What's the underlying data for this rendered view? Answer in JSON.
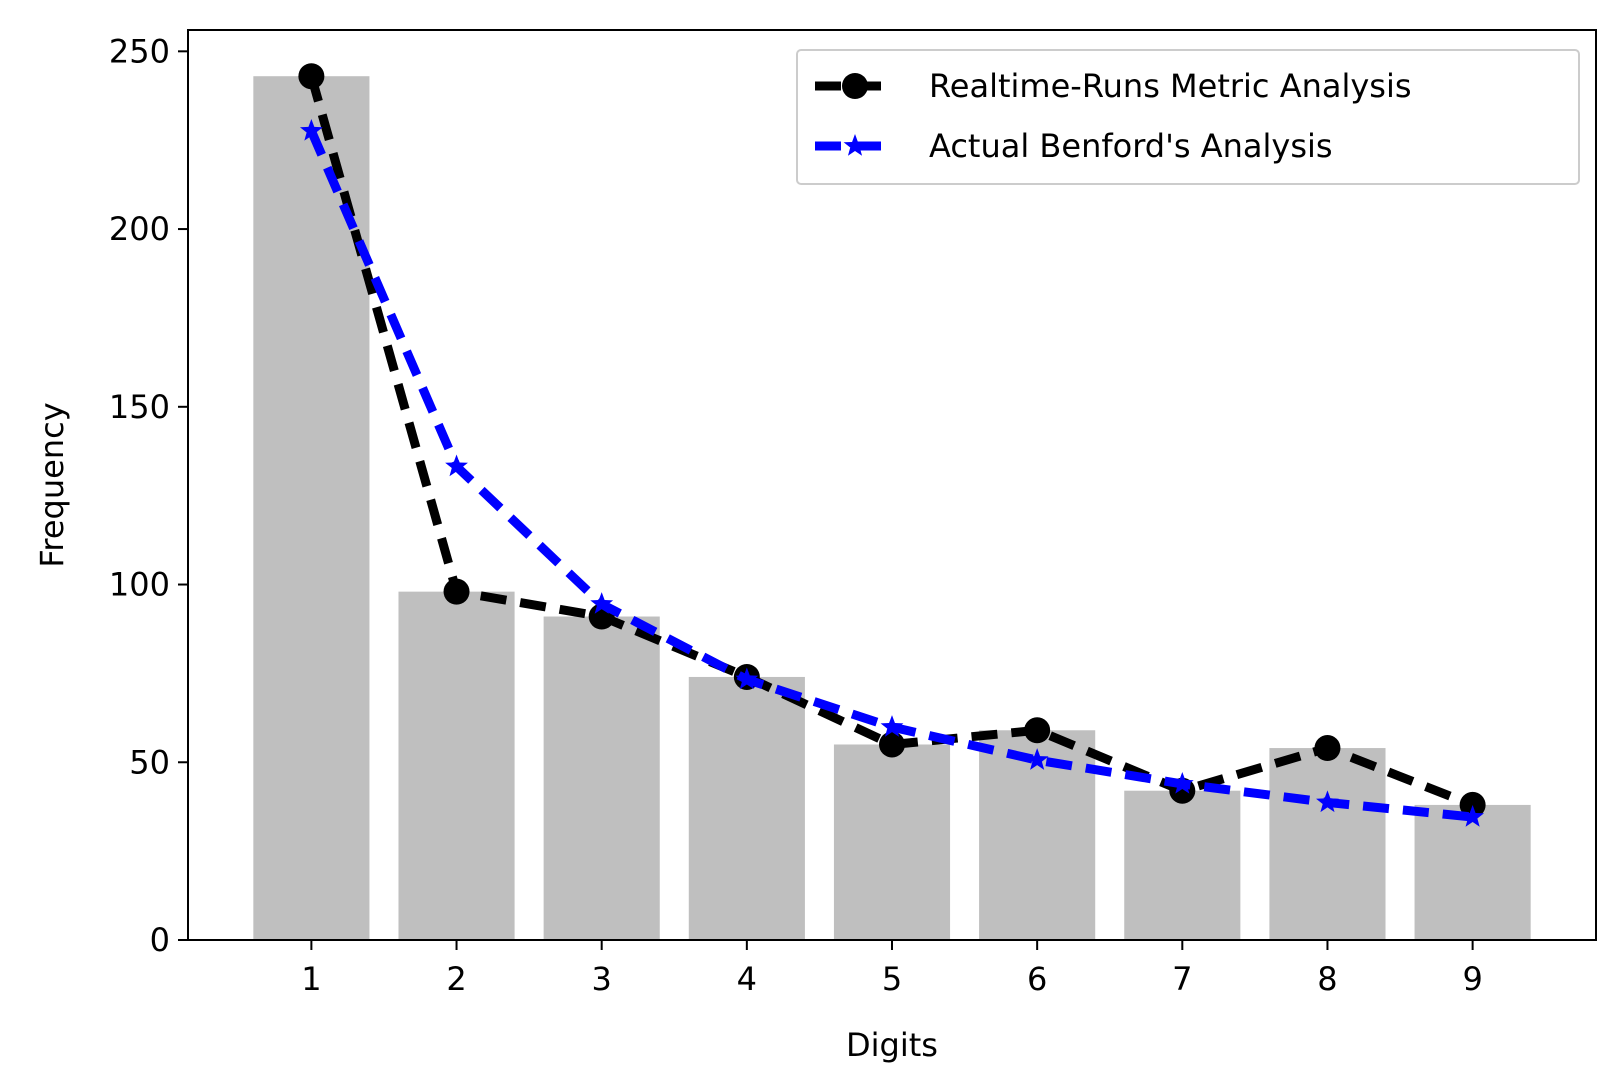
{
  "chart_data": {
    "type": "bar",
    "categories": [
      "1",
      "2",
      "3",
      "4",
      "5",
      "6",
      "7",
      "8",
      "9"
    ],
    "bars": {
      "values": [
        243,
        98,
        91,
        74,
        55,
        59,
        42,
        54,
        38
      ],
      "color": "#bfbfbf"
    },
    "series": [
      {
        "name": "Realtime-Runs Metric Analysis",
        "type": "line",
        "style": "dashed",
        "marker": "circle",
        "color": "#000000",
        "values": [
          243,
          98,
          91,
          74,
          55,
          59,
          42,
          54,
          38
        ]
      },
      {
        "name": "Actual Benford's Analysis",
        "type": "line",
        "style": "dashed",
        "marker": "star",
        "color": "#0000ff",
        "values": [
          227.6,
          133.2,
          94.5,
          73.3,
          59.9,
          50.6,
          43.9,
          38.7,
          34.6
        ]
      }
    ],
    "xlabel": "Digits",
    "ylabel": "Frequency",
    "ylim": [
      0,
      256
    ],
    "yticks": [
      0,
      50,
      100,
      150,
      200,
      250
    ],
    "grid": false,
    "legend_position": "top-right"
  }
}
